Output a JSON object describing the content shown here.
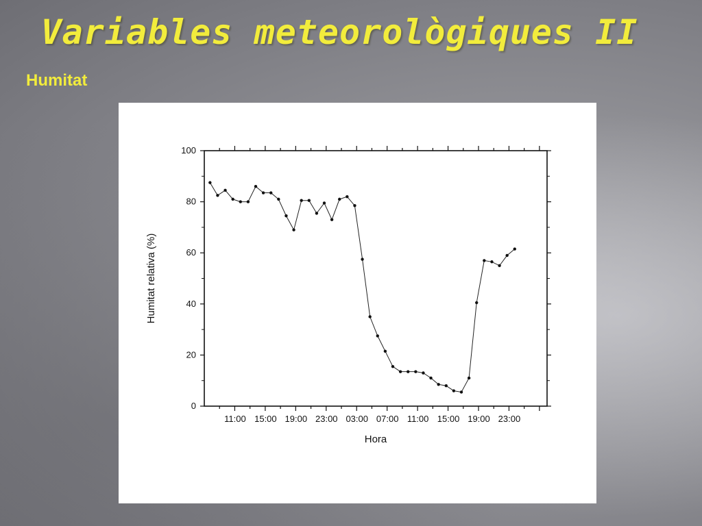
{
  "slide": {
    "title": "Variables meteorològiques II",
    "subtitle": "Humitat"
  },
  "colors": {
    "title": "#f2ec3c",
    "line": "#222222"
  },
  "chart_data": {
    "type": "line",
    "title": "",
    "xlabel": "Hora",
    "ylabel": "Humitat relativa (%)",
    "ylim": [
      0,
      100
    ],
    "yticks": [
      0,
      20,
      40,
      60,
      80,
      100
    ],
    "xticks": [
      "11:00",
      "15:00",
      "19:00",
      "23:00",
      "03:00",
      "07:00",
      "11:00",
      "15:00",
      "19:00",
      "23:00"
    ],
    "grid": false,
    "series": [
      {
        "x": [
          "08:00",
          "09:00",
          "10:00",
          "11:00",
          "12:00",
          "13:00",
          "14:00",
          "15:00",
          "16:00",
          "17:00",
          "18:00",
          "19:00",
          "20:00",
          "21:00",
          "22:00",
          "23:00",
          "00:00",
          "01:00",
          "02:00",
          "03:00",
          "04:00",
          "05:00",
          "06:00",
          "07:00",
          "08:00",
          "09:00",
          "10:00",
          "11:00",
          "12:00",
          "13:00",
          "14:00",
          "15:00",
          "16:00",
          "17:00",
          "18:00",
          "19:00",
          "20:00",
          "21:00",
          "22:00",
          "23:00",
          "00:00"
        ],
        "values": [
          87.5,
          82.5,
          84.5,
          81,
          80,
          80,
          86,
          83.5,
          83.5,
          81,
          74.5,
          69,
          80.5,
          80.5,
          75.5,
          79.5,
          73,
          81,
          82,
          78.5,
          57.5,
          35,
          27.5,
          21.5,
          15.5,
          13.5,
          13.5,
          13.5,
          13,
          11,
          8.5,
          8,
          6,
          5.5,
          11,
          40.5,
          57,
          56.5,
          55,
          59,
          61.5
        ]
      }
    ]
  }
}
